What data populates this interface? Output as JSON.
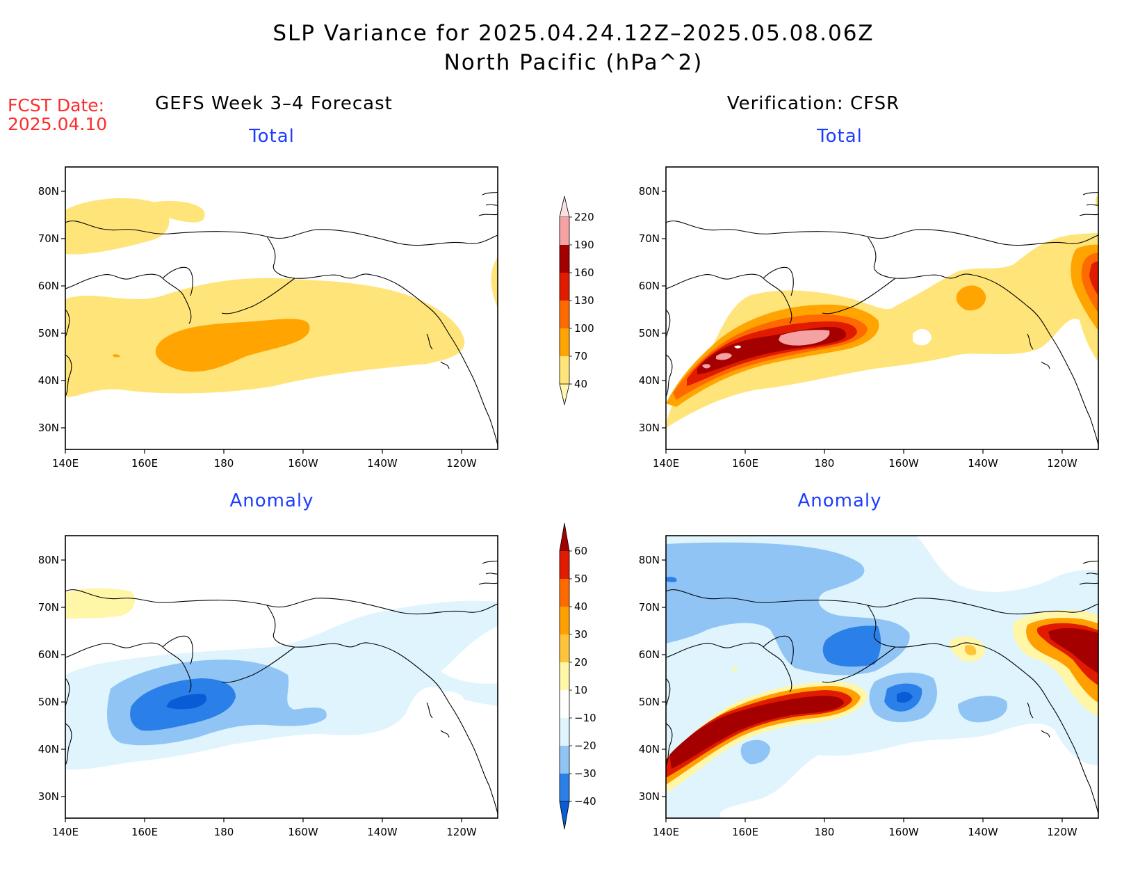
{
  "header": {
    "title_line1": "SLP Variance for 2025.04.24.12Z–2025.05.08.06Z",
    "title_line2": "North Pacific (hPa^2)",
    "fcst_label": "FCST Date:",
    "fcst_date": "2025.04.10",
    "left_column": "GEFS Week 3–4 Forecast",
    "right_column": "Verification: CFSR"
  },
  "panels": {
    "top_left_title": "Total",
    "top_right_title": "Total",
    "bottom_left_title": "Anomaly",
    "bottom_right_title": "Anomaly"
  },
  "axes": {
    "lon_labels": [
      "140E",
      "160E",
      "180",
      "160W",
      "140W",
      "120W"
    ],
    "lat_labels": [
      "80N",
      "70N",
      "60N",
      "50N",
      "40N",
      "30N"
    ]
  },
  "colorbar_total": {
    "levels": [
      "40",
      "70",
      "100",
      "130",
      "160",
      "190",
      "220"
    ],
    "colors": [
      "#fff6b0",
      "#ffe47a",
      "#ffa400",
      "#ff6a00",
      "#e01b00",
      "#a50000",
      "#f4a2a2",
      "#fde0e0"
    ]
  },
  "colorbar_anomaly": {
    "levels": [
      "−40",
      "−30",
      "−20",
      "−10",
      "10",
      "20",
      "30",
      "40",
      "50",
      "60"
    ],
    "colors": [
      "#0a5cd6",
      "#2a7fe8",
      "#8fc4f5",
      "#dff4fd",
      "#ffffff",
      "#fff6a8",
      "#ffc43a",
      "#ffa000",
      "#ff6a00",
      "#e01b00",
      "#a50000"
    ]
  },
  "colors": {
    "title_blue": "#1c3cff",
    "fcst_red": "#ff2a2a"
  }
}
